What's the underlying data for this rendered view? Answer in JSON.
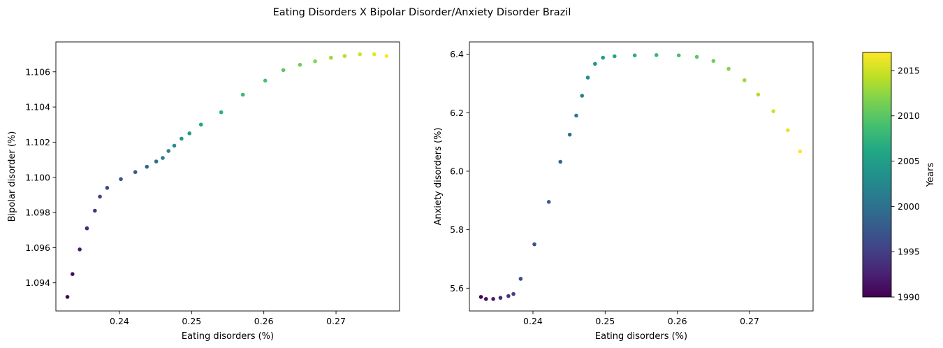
{
  "title": "Eating Disorders X Bipolar Disorder/Anxiety Disorder Brazil",
  "colorbar": {
    "label": "Years",
    "range": [
      1990,
      2017
    ],
    "ticks": [
      1990,
      1995,
      2000,
      2005,
      2010,
      2015
    ]
  },
  "chart_data": [
    {
      "type": "scatter",
      "xlabel": "Eating disorders (%)",
      "ylabel": "Bipolar disorder (%)",
      "xlim": [
        0.2312,
        0.2788
      ],
      "ylim": [
        1.0924,
        1.1077
      ],
      "xticks": [
        0.24,
        0.25,
        0.26,
        0.27
      ],
      "yticks": [
        1.094,
        1.096,
        1.098,
        1.1,
        1.102,
        1.104,
        1.106
      ],
      "ytick_decimals": 3,
      "grid": false,
      "color_by": "year",
      "points": [
        {
          "year": 1990,
          "x": 0.2328,
          "y": 1.0932
        },
        {
          "year": 1991,
          "x": 0.2335,
          "y": 1.0945
        },
        {
          "year": 1992,
          "x": 0.2345,
          "y": 1.0959
        },
        {
          "year": 1993,
          "x": 0.2355,
          "y": 1.0971
        },
        {
          "year": 1994,
          "x": 0.2366,
          "y": 1.0981
        },
        {
          "year": 1995,
          "x": 0.2373,
          "y": 1.0989
        },
        {
          "year": 1996,
          "x": 0.2383,
          "y": 1.0994
        },
        {
          "year": 1997,
          "x": 0.2402,
          "y": 1.0999
        },
        {
          "year": 1998,
          "x": 0.2422,
          "y": 1.1003
        },
        {
          "year": 1999,
          "x": 0.2438,
          "y": 1.1006
        },
        {
          "year": 2000,
          "x": 0.2451,
          "y": 1.1009
        },
        {
          "year": 2001,
          "x": 0.246,
          "y": 1.1011
        },
        {
          "year": 2002,
          "x": 0.2468,
          "y": 1.1015
        },
        {
          "year": 2003,
          "x": 0.2476,
          "y": 1.1018
        },
        {
          "year": 2004,
          "x": 0.2486,
          "y": 1.1022
        },
        {
          "year": 2005,
          "x": 0.2497,
          "y": 1.1025
        },
        {
          "year": 2006,
          "x": 0.2513,
          "y": 1.103
        },
        {
          "year": 2007,
          "x": 0.2541,
          "y": 1.1037
        },
        {
          "year": 2008,
          "x": 0.2571,
          "y": 1.1047
        },
        {
          "year": 2009,
          "x": 0.2602,
          "y": 1.1055
        },
        {
          "year": 2010,
          "x": 0.2627,
          "y": 1.1061
        },
        {
          "year": 2011,
          "x": 0.265,
          "y": 1.1064
        },
        {
          "year": 2012,
          "x": 0.2671,
          "y": 1.1066
        },
        {
          "year": 2013,
          "x": 0.2693,
          "y": 1.1068
        },
        {
          "year": 2014,
          "x": 0.2712,
          "y": 1.1069
        },
        {
          "year": 2015,
          "x": 0.2733,
          "y": 1.107
        },
        {
          "year": 2016,
          "x": 0.2753,
          "y": 1.107
        },
        {
          "year": 2017,
          "x": 0.277,
          "y": 1.1069
        }
      ]
    },
    {
      "type": "scatter",
      "xlabel": "Eating disorders (%)",
      "ylabel": "Anxiety disorders (%)",
      "xlim": [
        0.2312,
        0.2788
      ],
      "ylim": [
        5.522,
        6.442
      ],
      "xticks": [
        0.24,
        0.25,
        0.26,
        0.27
      ],
      "yticks": [
        5.6,
        5.8,
        6.0,
        6.2,
        6.4
      ],
      "ytick_decimals": 1,
      "grid": false,
      "color_by": "year",
      "points": [
        {
          "year": 1990,
          "x": 0.2328,
          "y": 5.57
        },
        {
          "year": 1991,
          "x": 0.2335,
          "y": 5.563
        },
        {
          "year": 1992,
          "x": 0.2345,
          "y": 5.563
        },
        {
          "year": 1993,
          "x": 0.2355,
          "y": 5.567
        },
        {
          "year": 1994,
          "x": 0.2366,
          "y": 5.573
        },
        {
          "year": 1995,
          "x": 0.2373,
          "y": 5.58
        },
        {
          "year": 1996,
          "x": 0.2383,
          "y": 5.632
        },
        {
          "year": 1997,
          "x": 0.2402,
          "y": 5.75
        },
        {
          "year": 1998,
          "x": 0.2422,
          "y": 5.895
        },
        {
          "year": 1999,
          "x": 0.2438,
          "y": 6.032
        },
        {
          "year": 2000,
          "x": 0.2451,
          "y": 6.125
        },
        {
          "year": 2001,
          "x": 0.246,
          "y": 6.19
        },
        {
          "year": 2002,
          "x": 0.2468,
          "y": 6.258
        },
        {
          "year": 2003,
          "x": 0.2476,
          "y": 6.32
        },
        {
          "year": 2004,
          "x": 0.2486,
          "y": 6.367
        },
        {
          "year": 2005,
          "x": 0.2497,
          "y": 6.388
        },
        {
          "year": 2006,
          "x": 0.2513,
          "y": 6.393
        },
        {
          "year": 2007,
          "x": 0.2541,
          "y": 6.396
        },
        {
          "year": 2008,
          "x": 0.2571,
          "y": 6.397
        },
        {
          "year": 2009,
          "x": 0.2602,
          "y": 6.396
        },
        {
          "year": 2010,
          "x": 0.2627,
          "y": 6.391
        },
        {
          "year": 2011,
          "x": 0.265,
          "y": 6.377
        },
        {
          "year": 2012,
          "x": 0.2671,
          "y": 6.35
        },
        {
          "year": 2013,
          "x": 0.2693,
          "y": 6.311
        },
        {
          "year": 2014,
          "x": 0.2712,
          "y": 6.262
        },
        {
          "year": 2015,
          "x": 0.2733,
          "y": 6.205
        },
        {
          "year": 2016,
          "x": 0.2753,
          "y": 6.14
        },
        {
          "year": 2017,
          "x": 0.277,
          "y": 6.068
        }
      ]
    }
  ]
}
